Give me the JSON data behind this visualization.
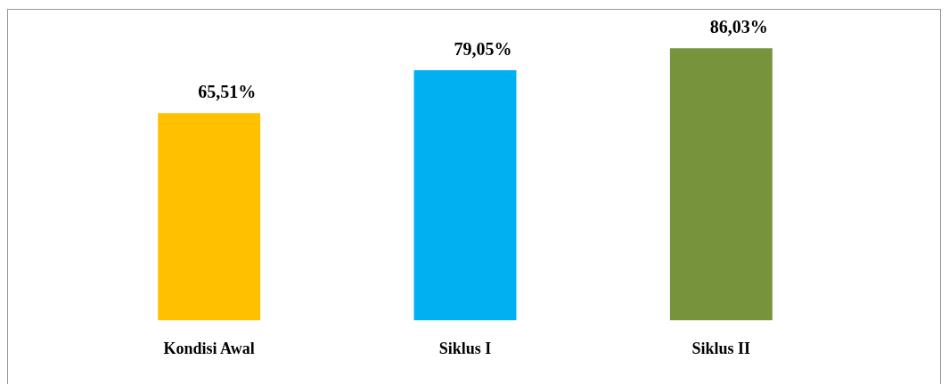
{
  "chart_data": {
    "type": "bar",
    "categories": [
      "Kondisi Awal",
      "Siklus I",
      "Siklus II"
    ],
    "values": [
      65.51,
      79.05,
      86.03
    ],
    "colors": [
      "#ffc000",
      "#00b0f0",
      "#77933c"
    ],
    "value_labels": [
      "65,51%",
      "79,05%",
      "86,03%"
    ],
    "grid": false,
    "legend": false
  }
}
